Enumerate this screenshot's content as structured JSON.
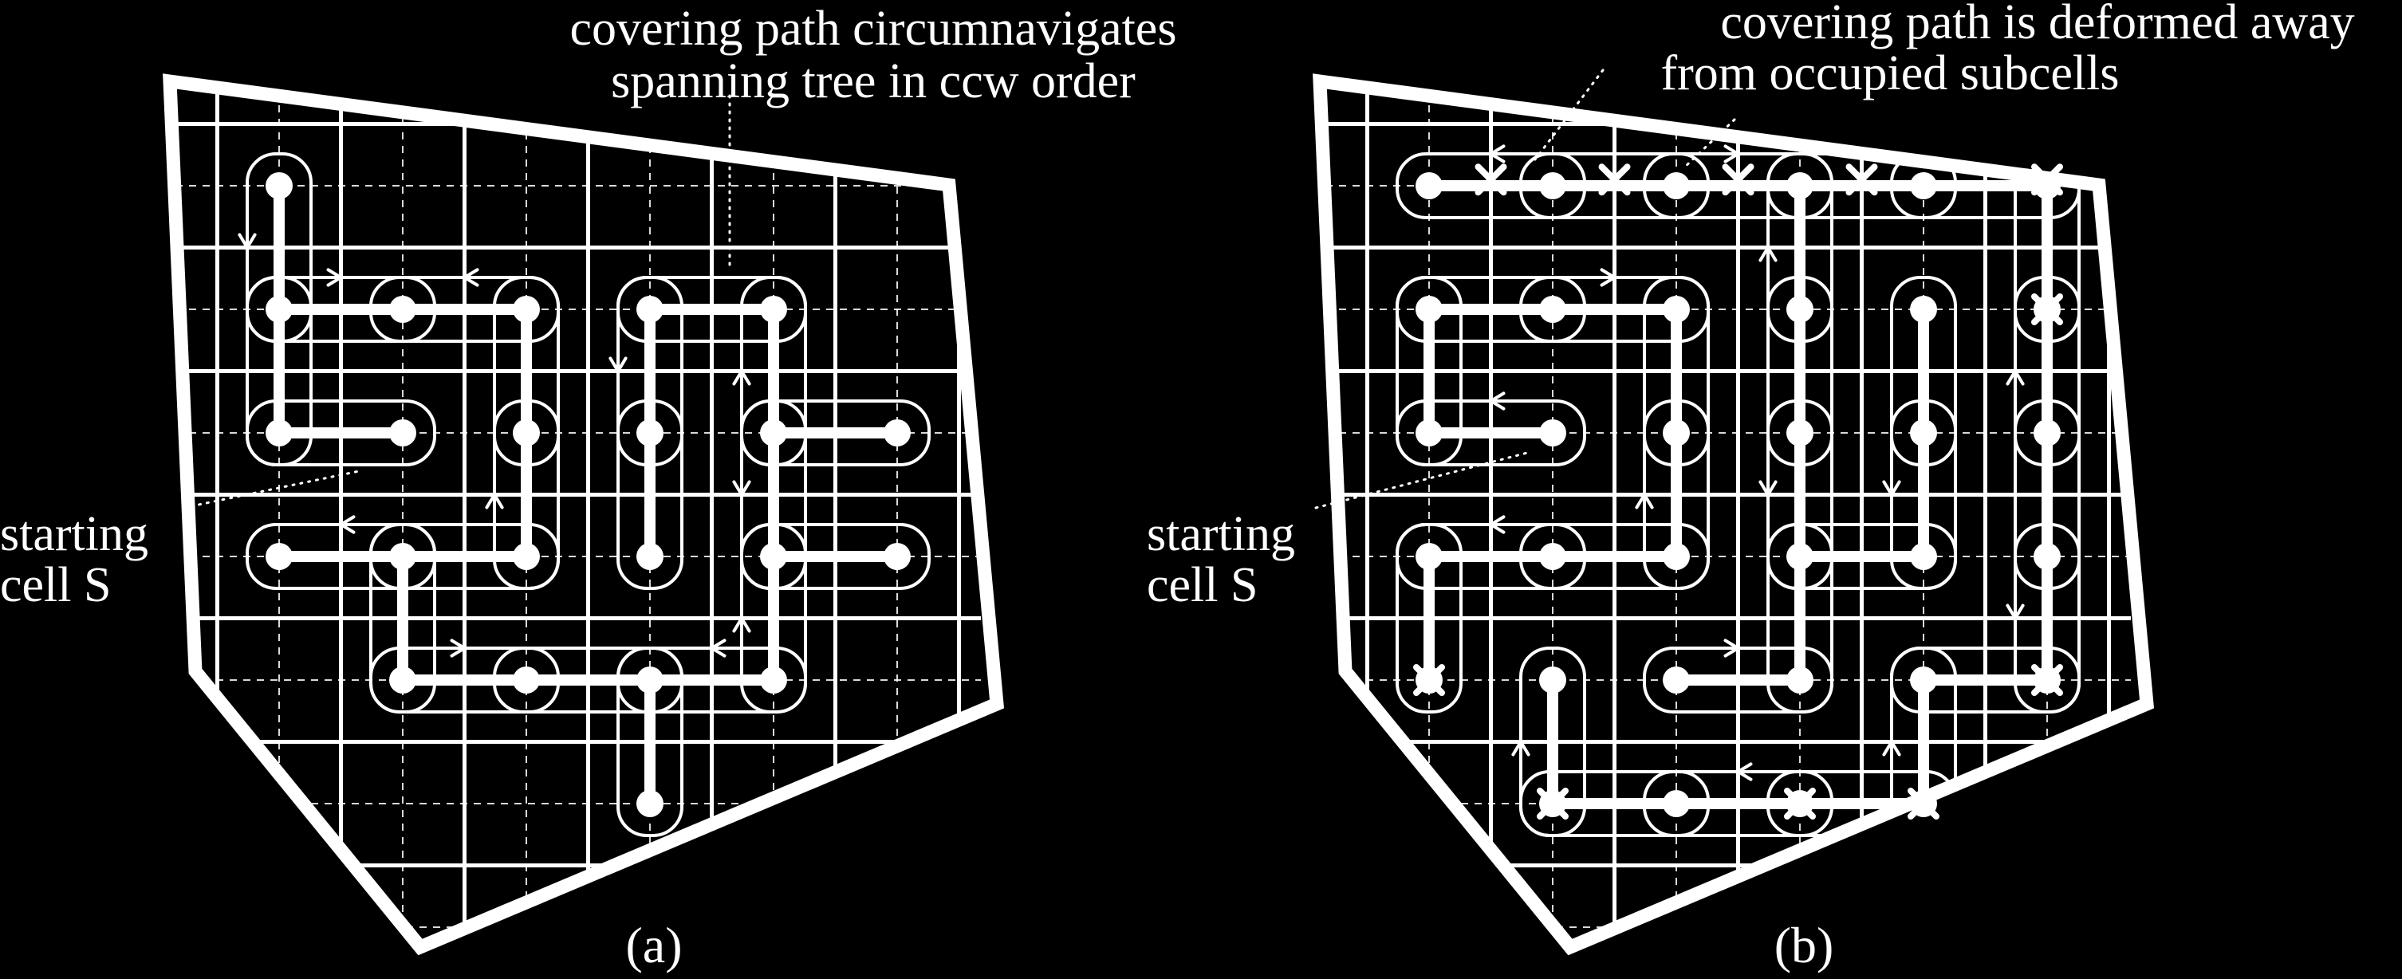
{
  "panels": [
    {
      "caption": "(a)",
      "callout": [
        "covering path circumnavigates",
        "spanning tree in ccw order"
      ],
      "start_label": [
        "starting",
        "cell S"
      ],
      "grid": {
        "cols": 6,
        "rows": 6
      },
      "tree_edges": [
        [
          [
            0,
            0
          ],
          [
            0,
            1
          ]
        ],
        [
          [
            0,
            1
          ],
          [
            0,
            2
          ]
        ],
        [
          [
            0,
            1
          ],
          [
            1,
            1
          ]
        ],
        [
          [
            0,
            2
          ],
          [
            1,
            2
          ]
        ],
        [
          [
            1,
            1
          ],
          [
            2,
            1
          ]
        ],
        [
          [
            2,
            1
          ],
          [
            2,
            2
          ]
        ],
        [
          [
            2,
            2
          ],
          [
            2,
            3
          ]
        ],
        [
          [
            2,
            3
          ],
          [
            1,
            3
          ]
        ],
        [
          [
            1,
            3
          ],
          [
            0,
            3
          ]
        ],
        [
          [
            1,
            3
          ],
          [
            1,
            4
          ]
        ],
        [
          [
            1,
            4
          ],
          [
            2,
            4
          ]
        ],
        [
          [
            2,
            4
          ],
          [
            3,
            4
          ]
        ],
        [
          [
            3,
            4
          ],
          [
            4,
            4
          ]
        ],
        [
          [
            3,
            4
          ],
          [
            3,
            5
          ]
        ],
        [
          [
            4,
            4
          ],
          [
            4,
            3
          ]
        ],
        [
          [
            4,
            3
          ],
          [
            5,
            3
          ]
        ],
        [
          [
            4,
            3
          ],
          [
            4,
            2
          ]
        ],
        [
          [
            4,
            2
          ],
          [
            5,
            2
          ]
        ],
        [
          [
            4,
            2
          ],
          [
            4,
            1
          ]
        ],
        [
          [
            4,
            1
          ],
          [
            3,
            1
          ]
        ],
        [
          [
            3,
            1
          ],
          [
            3,
            2
          ]
        ],
        [
          [
            3,
            2
          ],
          [
            3,
            3
          ]
        ]
      ],
      "blocked_subcells": []
    },
    {
      "caption": "(b)",
      "callout": [
        "covering path is deformed away",
        "from occupied subcells"
      ],
      "start_label": [
        "starting",
        "cell S"
      ],
      "grid": {
        "cols": 6,
        "rows": 6
      },
      "tree_edges": [
        [
          [
            0,
            0
          ],
          [
            1,
            0
          ]
        ],
        [
          [
            1,
            0
          ],
          [
            2,
            0
          ]
        ],
        [
          [
            2,
            0
          ],
          [
            3,
            0
          ]
        ],
        [
          [
            3,
            0
          ],
          [
            4,
            0
          ]
        ],
        [
          [
            4,
            0
          ],
          [
            5,
            0
          ]
        ],
        [
          [
            5,
            0
          ],
          [
            5,
            1
          ]
        ],
        [
          [
            5,
            1
          ],
          [
            5,
            2
          ]
        ],
        [
          [
            5,
            2
          ],
          [
            5,
            3
          ]
        ],
        [
          [
            5,
            3
          ],
          [
            5,
            4
          ]
        ],
        [
          [
            0,
            1
          ],
          [
            1,
            1
          ]
        ],
        [
          [
            1,
            1
          ],
          [
            2,
            1
          ]
        ],
        [
          [
            0,
            1
          ],
          [
            0,
            2
          ]
        ],
        [
          [
            0,
            2
          ],
          [
            1,
            2
          ]
        ],
        [
          [
            2,
            1
          ],
          [
            2,
            2
          ]
        ],
        [
          [
            2,
            2
          ],
          [
            2,
            3
          ]
        ],
        [
          [
            2,
            3
          ],
          [
            1,
            3
          ]
        ],
        [
          [
            1,
            3
          ],
          [
            0,
            3
          ]
        ],
        [
          [
            0,
            3
          ],
          [
            0,
            4
          ]
        ],
        [
          [
            3,
            0
          ],
          [
            3,
            1
          ]
        ],
        [
          [
            3,
            1
          ],
          [
            3,
            2
          ]
        ],
        [
          [
            3,
            2
          ],
          [
            3,
            3
          ]
        ],
        [
          [
            3,
            3
          ],
          [
            3,
            4
          ]
        ],
        [
          [
            3,
            4
          ],
          [
            2,
            4
          ]
        ],
        [
          [
            4,
            1
          ],
          [
            4,
            2
          ]
        ],
        [
          [
            4,
            2
          ],
          [
            4,
            3
          ]
        ],
        [
          [
            4,
            3
          ],
          [
            3,
            3
          ]
        ],
        [
          [
            1,
            4
          ],
          [
            1,
            5
          ]
        ],
        [
          [
            1,
            5
          ],
          [
            2,
            5
          ]
        ],
        [
          [
            2,
            5
          ],
          [
            3,
            5
          ]
        ],
        [
          [
            3,
            5
          ],
          [
            4,
            5
          ]
        ],
        [
          [
            4,
            5
          ],
          [
            4,
            4
          ]
        ],
        [
          [
            4,
            4
          ],
          [
            5,
            4
          ]
        ]
      ],
      "blocked_subcells": [
        [
          1,
          0
        ],
        [
          2,
          0
        ],
        [
          3,
          0
        ],
        [
          4,
          0
        ],
        [
          5,
          0
        ],
        [
          5,
          1
        ],
        [
          0,
          4
        ],
        [
          5,
          4
        ],
        [
          1,
          5
        ],
        [
          3,
          5
        ],
        [
          4,
          5
        ]
      ]
    }
  ]
}
